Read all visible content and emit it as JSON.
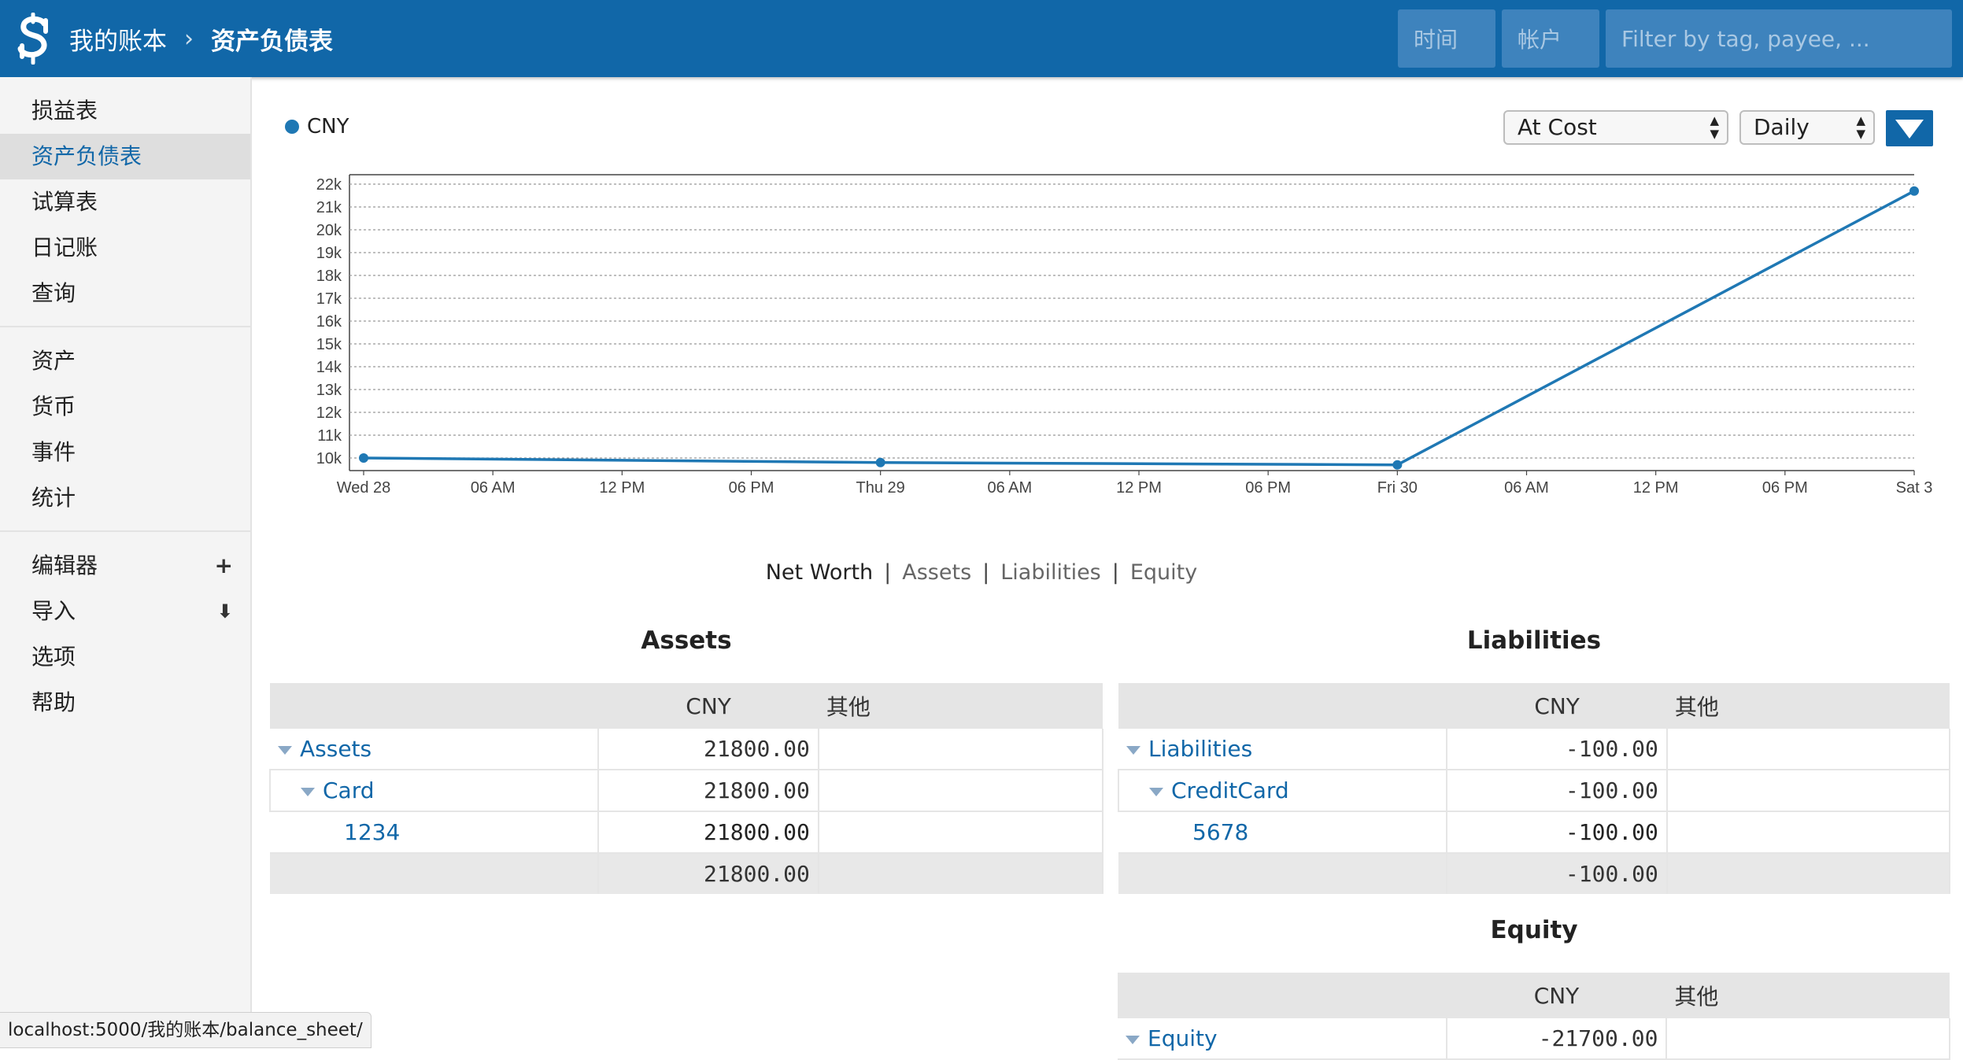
{
  "header": {
    "ledger_name": "我的账本",
    "separator": "›",
    "page_name": "资产负债表",
    "time_placeholder": "时间",
    "account_placeholder": "帐户",
    "filter_placeholder": "Filter by tag, payee, ..."
  },
  "sidebar": {
    "group1": [
      "损益表",
      "资产负债表",
      "试算表",
      "日记账",
      "查询"
    ],
    "group2": [
      "资产",
      "货币",
      "事件",
      "统计"
    ],
    "group3": [
      "编辑器",
      "导入",
      "选项",
      "帮助"
    ],
    "active": "资产负债表"
  },
  "chart_controls": {
    "legend_label": "CNY",
    "conversion": "At Cost",
    "interval": "Daily"
  },
  "chart_tabs": [
    "Net Worth",
    "Assets",
    "Liabilities",
    "Equity"
  ],
  "chart_data": {
    "type": "line",
    "series": [
      {
        "name": "CNY",
        "x": [
          "2024-02-28 00:00",
          "2024-02-29 00:00",
          "2024-03-01 00:00",
          "2024-03-03 00:00"
        ],
        "values": [
          10000,
          9800,
          9700,
          21700
        ]
      }
    ],
    "x_ticks": [
      "Wed 28",
      "06 AM",
      "12 PM",
      "06 PM",
      "Thu 29",
      "06 AM",
      "12 PM",
      "06 PM",
      "Fri 30",
      "06 AM",
      "12 PM",
      "06 PM",
      "Sat 3"
    ],
    "y_ticks": [
      "10k",
      "11k",
      "12k",
      "13k",
      "14k",
      "15k",
      "16k",
      "17k",
      "18k",
      "19k",
      "20k",
      "21k",
      "22k"
    ],
    "ylim": [
      10000,
      22000
    ],
    "grid": true,
    "colors": {
      "line": "#1f78b4",
      "grid": "#999999"
    }
  },
  "assets": {
    "title": "Assets",
    "columns": [
      "CNY",
      "其他"
    ],
    "rows": [
      {
        "account": "Assets",
        "cny": "21800.00"
      },
      {
        "account": "Card",
        "cny": "21800.00"
      },
      {
        "account": "1234",
        "cny": "21800.00"
      }
    ],
    "total": "21800.00"
  },
  "liabilities": {
    "title": "Liabilities",
    "columns": [
      "CNY",
      "其他"
    ],
    "rows": [
      {
        "account": "Liabilities",
        "cny": "-100.00"
      },
      {
        "account": "CreditCard",
        "cny": "-100.00"
      },
      {
        "account": "5678",
        "cny": "-100.00"
      }
    ],
    "total": "-100.00"
  },
  "equity": {
    "title": "Equity",
    "columns": [
      "CNY",
      "其他"
    ],
    "rows": [
      {
        "account": "Equity",
        "cny": "-21700.00"
      }
    ]
  },
  "status_url": "localhost:5000/我的账本/balance_sheet/",
  "colors": {
    "brand": "#1167a8",
    "accent": "#1f78b4"
  }
}
